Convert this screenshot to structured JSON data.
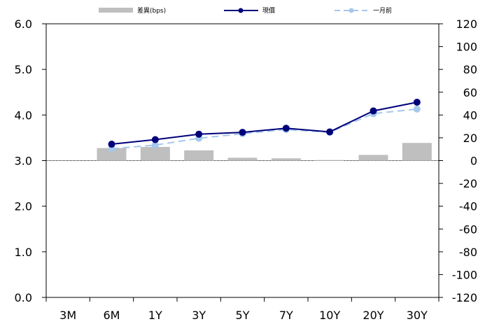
{
  "chart_data": {
    "type": "bar+line",
    "categories": [
      "3M",
      "6M",
      "1Y",
      "3Y",
      "5Y",
      "7Y",
      "10Y",
      "20Y",
      "30Y"
    ],
    "y_left": {
      "ylim": [
        0,
        6
      ],
      "ticks": [
        "0.0",
        "1.0",
        "2.0",
        "3.0",
        "4.0",
        "5.0",
        "6.0"
      ]
    },
    "y_right": {
      "ylim": [
        -120,
        120
      ],
      "ticks": [
        "-120",
        "-100",
        "-80",
        "-60",
        "-40",
        "-20",
        "0",
        "20",
        "40",
        "60",
        "80",
        "100",
        "120"
      ]
    },
    "legend_position": "top",
    "series": [
      {
        "name": "差異(bps)",
        "type": "bar",
        "axis": "right",
        "color": "#bfbfbf",
        "values": [
          null,
          11,
          12,
          9,
          2.5,
          2,
          0.5,
          5,
          15.5
        ]
      },
      {
        "name": "現價",
        "type": "line",
        "axis": "left",
        "color": "#00007a",
        "values": [
          null,
          3.36,
          3.46,
          3.58,
          3.62,
          3.71,
          3.63,
          4.09,
          4.28
        ]
      },
      {
        "name": "一月前",
        "type": "line",
        "axis": "left",
        "style": "dashed",
        "color": "#a6c8ec",
        "values": [
          null,
          3.26,
          3.34,
          3.49,
          3.59,
          3.68,
          3.62,
          4.03,
          4.13
        ]
      }
    ]
  }
}
